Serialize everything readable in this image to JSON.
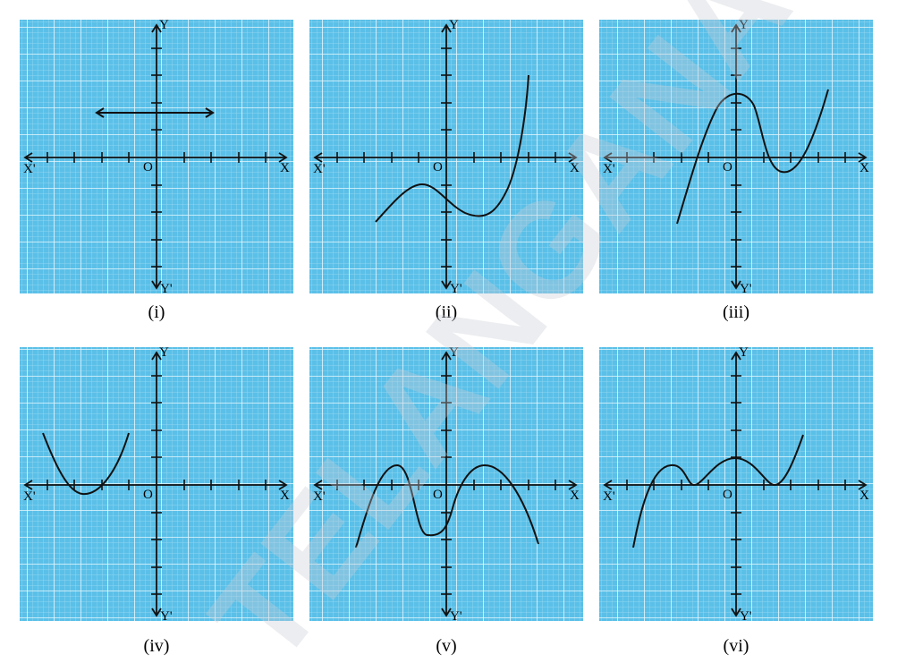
{
  "colors": {
    "panel_bg": "#5bc0e8",
    "fine_grid": "#9fdcf5",
    "major_grid": "#e8f7fd",
    "axis": "#111111",
    "curve": "#111111",
    "watermark": "#c9ccd3"
  },
  "axis_labels": {
    "x_pos": "X",
    "x_neg": "X'",
    "y_pos": "Y",
    "y_neg": "Y'",
    "origin": "O"
  },
  "watermark_text": "TELANGANA",
  "graphs": [
    {
      "caption": "(i)",
      "shape": "horizontal-line"
    },
    {
      "caption": "(ii)",
      "shape": "cubic-curve"
    },
    {
      "caption": "(iii)",
      "shape": "cubic-curve"
    },
    {
      "caption": "(iv)",
      "shape": "parabola"
    },
    {
      "caption": "(v)",
      "shape": "quartic-curve"
    },
    {
      "caption": "(vi)",
      "shape": "quartic-curve"
    }
  ]
}
